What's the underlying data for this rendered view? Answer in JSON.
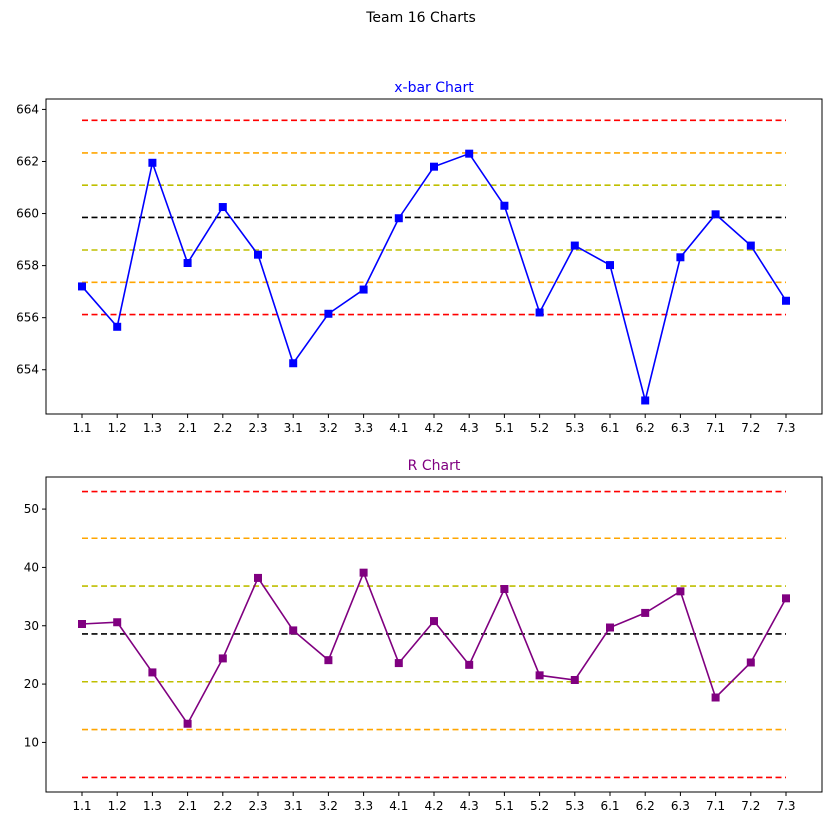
{
  "figure_title": "Team 16 Charts",
  "chart_data": [
    {
      "type": "line",
      "title": "x-bar Chart",
      "title_color": "#0000ff",
      "line_color": "#0000ff",
      "marker": "square",
      "categories": [
        "1.1",
        "1.2",
        "1.3",
        "2.1",
        "2.2",
        "2.3",
        "3.1",
        "3.2",
        "3.3",
        "4.1",
        "4.2",
        "4.3",
        "5.1",
        "5.2",
        "5.3",
        "6.1",
        "6.2",
        "6.3",
        "7.1",
        "7.2",
        "7.3"
      ],
      "values": [
        657.2,
        655.65,
        661.95,
        658.1,
        660.25,
        658.42,
        654.25,
        656.15,
        657.08,
        659.82,
        661.8,
        662.3,
        660.3,
        656.2,
        658.77,
        658.02,
        652.82,
        658.32,
        659.97,
        658.77,
        656.65
      ],
      "ylim": [
        652.3,
        664.4
      ],
      "yticks": [
        654,
        656,
        658,
        660,
        662,
        664
      ],
      "xlabel": "",
      "ylabel": "",
      "grid": false,
      "control_lines": [
        {
          "value": 663.58,
          "color": "#ff0000"
        },
        {
          "value": 662.33,
          "color": "#ffa500"
        },
        {
          "value": 661.09,
          "color": "#bfbf00"
        },
        {
          "value": 659.85,
          "color": "#000000"
        },
        {
          "value": 658.6,
          "color": "#bfbf00"
        },
        {
          "value": 657.36,
          "color": "#ffa500"
        },
        {
          "value": 656.12,
          "color": "#ff0000"
        }
      ]
    },
    {
      "type": "line",
      "title": "R Chart",
      "title_color": "#800080",
      "line_color": "#800080",
      "marker": "square",
      "categories": [
        "1.1",
        "1.2",
        "1.3",
        "2.1",
        "2.2",
        "2.3",
        "3.1",
        "3.2",
        "3.3",
        "4.1",
        "4.2",
        "4.3",
        "5.1",
        "5.2",
        "5.3",
        "6.1",
        "6.2",
        "6.3",
        "7.1",
        "7.2",
        "7.3"
      ],
      "values": [
        30.3,
        30.6,
        22.0,
        13.2,
        24.4,
        38.2,
        29.2,
        24.1,
        39.1,
        23.6,
        30.8,
        23.3,
        36.3,
        21.5,
        20.7,
        29.7,
        32.2,
        35.9,
        17.7,
        23.7,
        34.7
      ],
      "ylim": [
        1.5,
        55.5
      ],
      "yticks": [
        10,
        20,
        30,
        40,
        50
      ],
      "xlabel": "",
      "ylabel": "",
      "grid": false,
      "control_lines": [
        {
          "value": 53.0,
          "color": "#ff0000"
        },
        {
          "value": 45.0,
          "color": "#ffa500"
        },
        {
          "value": 36.8,
          "color": "#bfbf00"
        },
        {
          "value": 28.6,
          "color": "#000000"
        },
        {
          "value": 20.4,
          "color": "#bfbf00"
        },
        {
          "value": 12.2,
          "color": "#ffa500"
        },
        {
          "value": 4.0,
          "color": "#ff0000"
        }
      ]
    }
  ]
}
